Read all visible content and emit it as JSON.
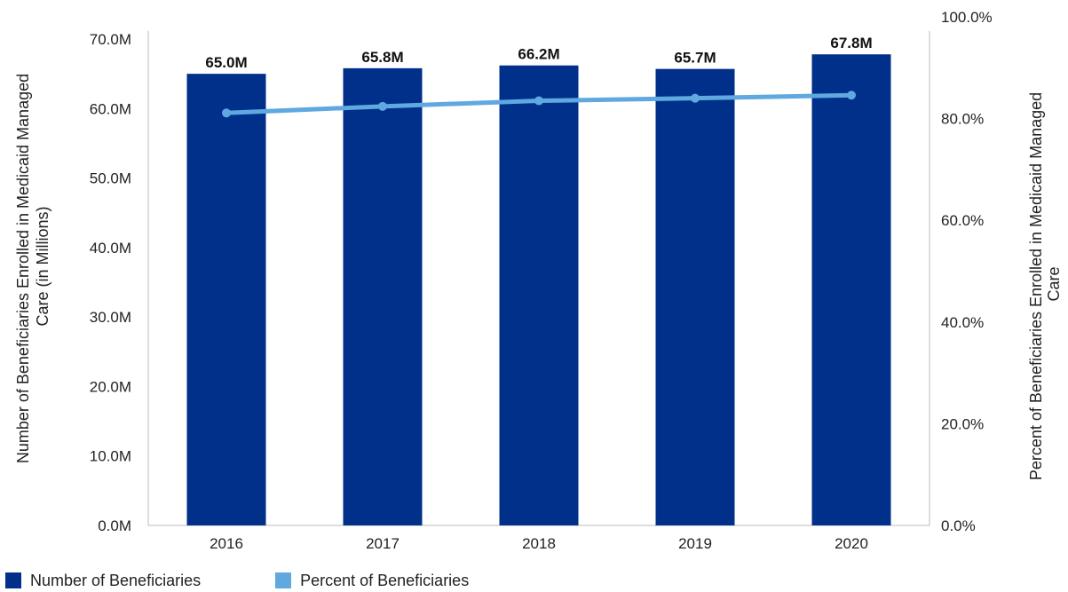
{
  "colors": {
    "bars": "#00308a",
    "line": "#5fa8e0",
    "axis": "#bbbbbb"
  },
  "chart_data": {
    "type": "bar",
    "categories": [
      "2016",
      "2017",
      "2018",
      "2019",
      "2020"
    ],
    "series": [
      {
        "name": "Number of Beneficiaries",
        "type": "bar",
        "axis": "left",
        "values": [
          65.0,
          65.8,
          66.2,
          65.7,
          67.8
        ],
        "labels": [
          "65.0M",
          "65.8M",
          "66.2M",
          "65.7M",
          "67.8M"
        ]
      },
      {
        "name": "Percent of Beneficiaries",
        "type": "line",
        "axis": "right",
        "values": [
          81.1,
          82.4,
          83.5,
          84.0,
          84.6
        ]
      }
    ],
    "ylabel": "Number of Beneficiaries Enrolled in Medicaid Managed Care (in Millions)",
    "ylabel_lines": [
      "Number of Beneficiaries Enrolled in Medicaid Managed",
      "Care (in Millions)"
    ],
    "y2label": "Percent of Beneficiaries Enrolled in Medicaid Managed Care",
    "y2label_lines": [
      "Percent of Beneficiaries Enrolled in Medicaid Managed",
      "Care"
    ],
    "ylim": [
      0,
      70
    ],
    "y2lim": [
      0,
      100
    ],
    "yticks": [
      "0.0M",
      "10.0M",
      "20.0M",
      "30.0M",
      "40.0M",
      "50.0M",
      "60.0M",
      "70.0M"
    ],
    "y2ticks": [
      "0.0%",
      "20.0%",
      "40.0%",
      "60.0%",
      "80.0%",
      "100.0%"
    ],
    "grid": false,
    "legend_position": "bottom-left"
  }
}
